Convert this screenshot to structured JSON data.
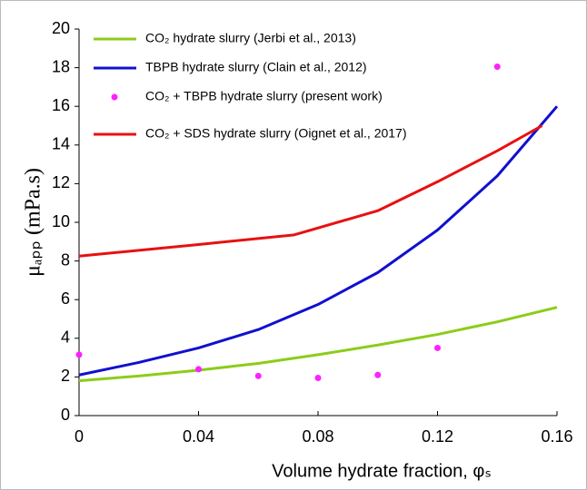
{
  "chart_data": {
    "type": "line",
    "x_label": "Volume hydrate fraction, φₛ",
    "y_label": "μₐₚₚ (mPa.s)",
    "xlim": [
      0,
      0.16
    ],
    "xticks": [
      0,
      0.04,
      0.08,
      0.12,
      0.16
    ],
    "ylim": [
      0,
      20
    ],
    "yticks": [
      0,
      2,
      4,
      6,
      8,
      10,
      12,
      14,
      16,
      18,
      20
    ],
    "legend": "upper left",
    "series": [
      {
        "name": "CO₂ hydrate slurry (Jerbi et al., 2013)",
        "color": "#8ccc1a",
        "x": [
          0,
          0.02,
          0.04,
          0.06,
          0.08,
          0.1,
          0.12,
          0.14,
          0.16
        ],
        "values": [
          1.8,
          2.05,
          2.35,
          2.7,
          3.15,
          3.65,
          4.2,
          4.85,
          5.6
        ]
      },
      {
        "name": "TBPB hydrate slurry (Clain et al., 2012)",
        "color": "#1010d0",
        "x": [
          0,
          0.02,
          0.04,
          0.06,
          0.08,
          0.1,
          0.12,
          0.14,
          0.16
        ],
        "values": [
          2.1,
          2.75,
          3.5,
          4.45,
          5.75,
          7.4,
          9.6,
          12.4,
          16.0
        ]
      },
      {
        "name": "CO₂ + TBPB hydrate slurry (present work)",
        "color": "#ff20ff",
        "type": "scatter",
        "x": [
          0,
          0.04,
          0.06,
          0.08,
          0.1,
          0.12,
          0.14
        ],
        "values": [
          3.15,
          2.4,
          2.05,
          1.95,
          2.1,
          3.5,
          18.05
        ]
      },
      {
        "name": "CO₂ + SDS hydrate slurry  (Oignet et al., 2017)",
        "color": "#e81010",
        "x": [
          0,
          0.04,
          0.072,
          0.1,
          0.12,
          0.14,
          0.155
        ],
        "values": [
          8.25,
          8.85,
          9.35,
          10.6,
          12.1,
          13.7,
          15.0
        ]
      }
    ]
  }
}
